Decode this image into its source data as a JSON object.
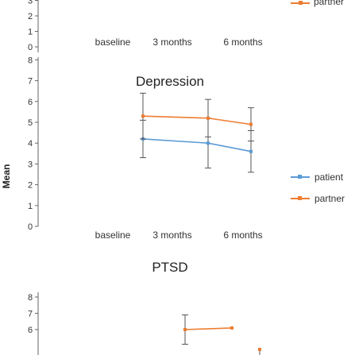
{
  "chart_data": {
    "type": "line",
    "ylabel": "Mean",
    "series_colors": {
      "patient": "#5b9bd5",
      "partner": "#ed7d31"
    },
    "legend_top": {
      "label": "partner"
    },
    "panels": [
      {
        "title": "",
        "categories": [
          "baseline",
          "3 months",
          "6 months"
        ],
        "yticks": [
          0,
          1,
          2,
          3
        ],
        "visible_ticks": [
          "0",
          "1",
          "2",
          "3"
        ],
        "ylim": [
          0,
          3
        ],
        "series": [],
        "partial": true
      },
      {
        "title": "Depression",
        "categories": [
          "baseline",
          "3 months",
          "6 months"
        ],
        "yticks": [
          0,
          1,
          2,
          3,
          4,
          5,
          6,
          7,
          8
        ],
        "ylim": [
          0,
          8.3
        ],
        "series": [
          {
            "name": "patient",
            "values": [
              4.2,
              4.0,
              3.6
            ],
            "err": [
              0.9,
              1.2,
              1.0
            ]
          },
          {
            "name": "partner",
            "values": [
              5.3,
              5.2,
              4.9
            ],
            "err": [
              1.1,
              0.9,
              0.8
            ]
          }
        ]
      },
      {
        "title": "PTSD",
        "categories": [
          "baseline",
          "3 months",
          "6 months"
        ],
        "yticks": [
          6,
          7,
          8
        ],
        "ylim": [
          5.3,
          8.6
        ],
        "series": [
          {
            "name": "partner",
            "values": [
              6.0,
              6.1,
              null
            ],
            "err": [
              0.9,
              0,
              null
            ]
          }
        ],
        "partial": true
      }
    ],
    "legend": [
      {
        "name": "patient"
      },
      {
        "name": "partner"
      }
    ]
  }
}
